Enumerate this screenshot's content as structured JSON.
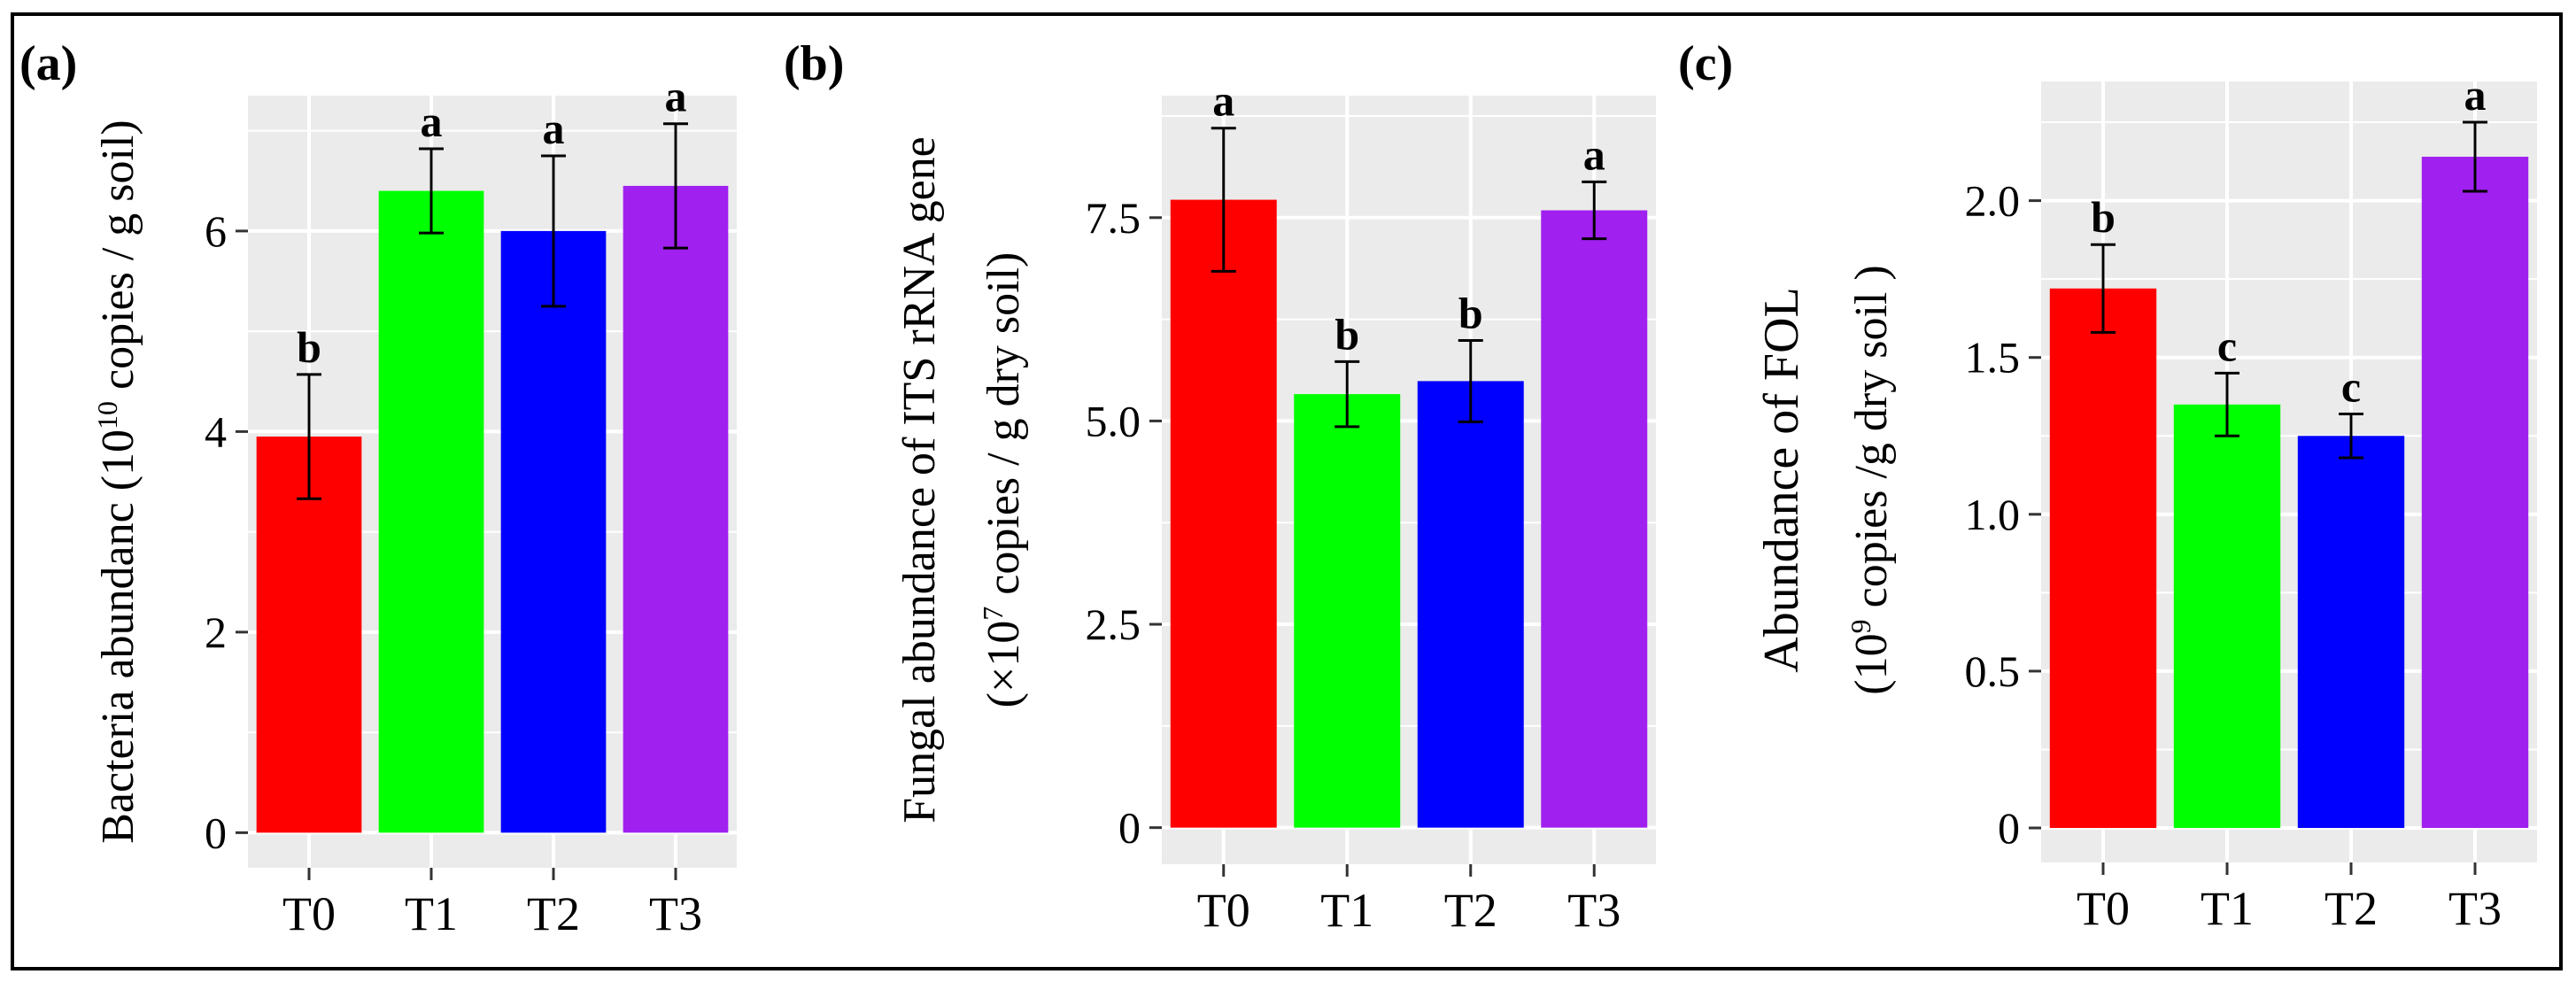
{
  "figure": {
    "colors": {
      "panel_bg": "#EBEBEB",
      "grid": "#FFFFFF",
      "frame": "#000000",
      "errorbar": "#000000"
    },
    "bar_colors": [
      "#FF0000",
      "#00FF00",
      "#0000FF",
      "#A020F0"
    ]
  },
  "chart_data": [
    {
      "type": "bar",
      "panel_label": "(a)",
      "title": "",
      "categories": [
        "T0",
        "T1",
        "T2",
        "T3"
      ],
      "values": [
        3.95,
        6.4,
        6.0,
        6.45
      ],
      "errors": [
        0.62,
        0.42,
        0.75,
        0.62
      ],
      "letters": [
        "b",
        "a",
        "a",
        "a"
      ],
      "xlabel": "",
      "ylabel": [
        "Bacteria abundanc (10",
        "10",
        " copies / g soil)"
      ],
      "ylim": [
        -0.35,
        7.35
      ],
      "yticks": [
        0,
        2,
        4,
        6
      ],
      "ytick_labels": [
        "0",
        "2",
        "4",
        "6"
      ]
    },
    {
      "type": "bar",
      "panel_label": "(b)",
      "title": "",
      "categories": [
        "T0",
        "T1",
        "T2",
        "T3"
      ],
      "values": [
        7.72,
        5.33,
        5.49,
        7.59
      ],
      "errors": [
        0.88,
        0.4,
        0.5,
        0.35
      ],
      "letters": [
        "a",
        "b",
        "b",
        "a"
      ],
      "xlabel": "",
      "ylabel_line1": "Fungal abundance of ITS rRNA gene",
      "ylabel_line2": [
        "(×10",
        "7",
        " copies / g  dry soil)"
      ],
      "ylim": [
        -0.45,
        9.0
      ],
      "yticks": [
        0,
        2.5,
        5.0,
        7.5
      ],
      "ytick_labels": [
        "0",
        "2.5",
        "5.0",
        "7.5"
      ]
    },
    {
      "type": "bar",
      "panel_label": "(c)",
      "title": "",
      "categories": [
        "T0",
        "T1",
        "T2",
        "T3"
      ],
      "values": [
        1.72,
        1.35,
        1.25,
        2.14
      ],
      "errors": [
        0.14,
        0.1,
        0.07,
        0.11
      ],
      "letters": [
        "b",
        "c",
        "c",
        "a"
      ],
      "xlabel": "",
      "ylabel_line1": "Abundance of  FOL",
      "ylabel_line2": [
        "(10",
        "9",
        " copies /g dry soil )"
      ],
      "ylim": [
        -0.11,
        2.38
      ],
      "yticks": [
        0,
        0.5,
        1.0,
        1.5,
        2.0
      ],
      "ytick_labels": [
        "0",
        "0.5",
        "1.0",
        "1.5",
        "2.0"
      ]
    }
  ]
}
